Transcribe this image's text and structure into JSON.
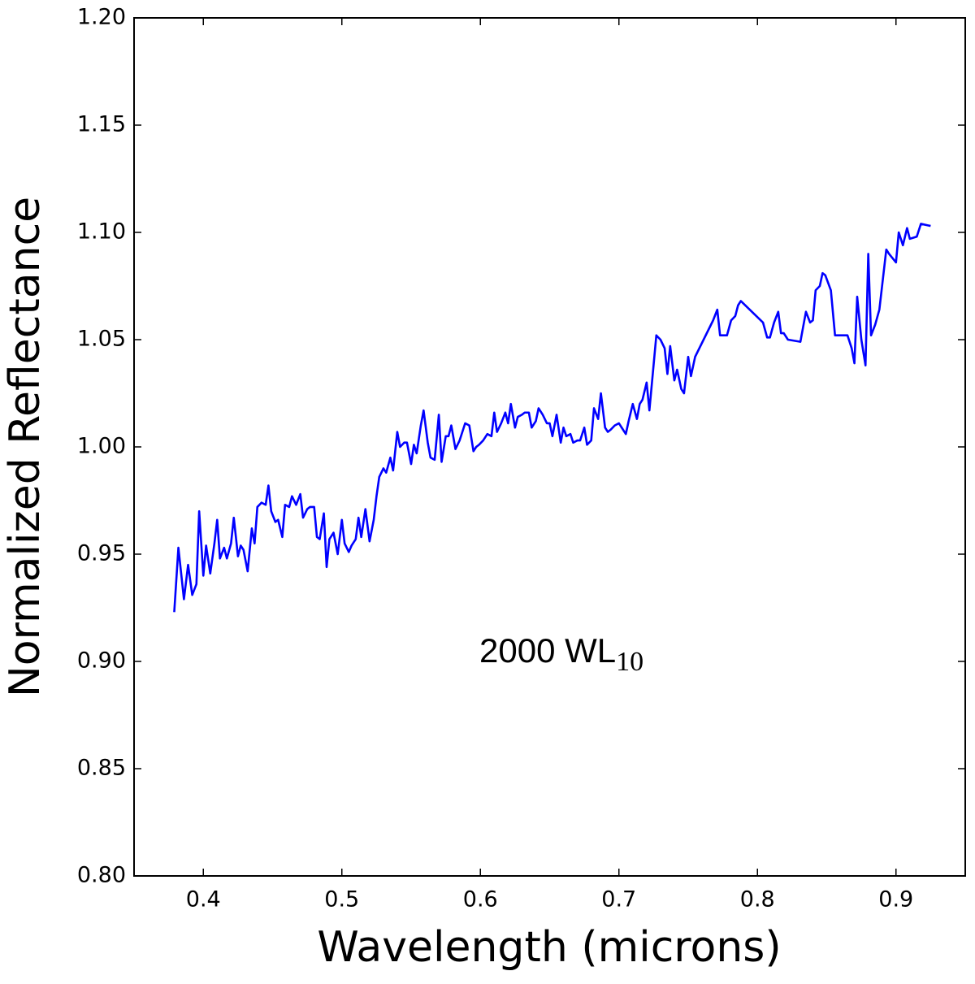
{
  "chart_data": {
    "type": "line",
    "xlabel": "Wavelength (microns)",
    "ylabel": "Normalized Reflectance",
    "annotation": {
      "text": "2000 WL",
      "subscript": "10"
    },
    "xlim": [
      0.35,
      0.95
    ],
    "ylim": [
      0.8,
      1.2
    ],
    "xticks": [
      0.4,
      0.5,
      0.6,
      0.7,
      0.8,
      0.9
    ],
    "yticks": [
      {
        "value": 0.8,
        "label": "0.80"
      },
      0.85,
      {
        "value": 0.9,
        "label": "0.90"
      },
      0.95,
      {
        "value": 1.0,
        "label": "1.00"
      },
      1.05,
      {
        "value": 1.1,
        "label": "1.10"
      },
      1.15,
      {
        "value": 1.2,
        "label": "1.20"
      }
    ],
    "grid": false,
    "x": [
      0.379,
      0.382,
      0.386,
      0.389,
      0.392,
      0.395,
      0.397,
      0.4,
      0.402,
      0.405,
      0.408,
      0.41,
      0.412,
      0.415,
      0.417,
      0.42,
      0.422,
      0.425,
      0.427,
      0.429,
      0.432,
      0.435,
      0.437,
      0.439,
      0.442,
      0.445,
      0.447,
      0.449,
      0.452,
      0.454,
      0.457,
      0.459,
      0.462,
      0.464,
      0.467,
      0.47,
      0.472,
      0.475,
      0.477,
      0.48,
      0.482,
      0.484,
      0.487,
      0.489,
      0.491,
      0.494,
      0.497,
      0.5,
      0.502,
      0.505,
      0.507,
      0.51,
      0.512,
      0.514,
      0.517,
      0.52,
      0.523,
      0.525,
      0.527,
      0.53,
      0.532,
      0.535,
      0.537,
      0.54,
      0.542,
      0.545,
      0.547,
      0.55,
      0.552,
      0.554,
      0.557,
      0.559,
      0.562,
      0.564,
      0.567,
      0.57,
      0.572,
      0.575,
      0.577,
      0.579,
      0.582,
      0.585,
      0.587,
      0.589,
      0.592,
      0.595,
      0.597,
      0.599,
      0.602,
      0.605,
      0.608,
      0.61,
      0.612,
      0.615,
      0.618,
      0.62,
      0.622,
      0.625,
      0.627,
      0.63,
      0.632,
      0.635,
      0.637,
      0.64,
      0.642,
      0.645,
      0.648,
      0.65,
      0.652,
      0.655,
      0.658,
      0.66,
      0.662,
      0.665,
      0.667,
      0.67,
      0.672,
      0.675,
      0.677,
      0.68,
      0.682,
      0.685,
      0.687,
      0.69,
      0.692,
      0.694,
      0.697,
      0.7,
      0.702,
      0.705,
      0.707,
      0.71,
      0.713,
      0.715,
      0.717,
      0.72,
      0.722,
      0.725,
      0.727,
      0.73,
      0.733,
      0.735,
      0.737,
      0.74,
      0.742,
      0.745,
      0.747,
      0.75,
      0.752,
      0.755,
      0.768,
      0.771,
      0.773,
      0.776,
      0.778,
      0.781,
      0.784,
      0.786,
      0.788,
      0.804,
      0.807,
      0.809,
      0.812,
      0.815,
      0.817,
      0.819,
      0.822,
      0.831,
      0.833,
      0.835,
      0.838,
      0.84,
      0.842,
      0.845,
      0.847,
      0.849,
      0.853,
      0.856,
      0.865,
      0.868,
      0.87,
      0.872,
      0.875,
      0.878,
      0.88,
      0.882,
      0.885,
      0.888,
      0.893,
      0.895,
      0.9,
      0.902,
      0.905,
      0.908,
      0.91,
      0.915,
      0.918,
      0.925
    ],
    "series": [
      {
        "color": "#0000ff",
        "values": [
          0.923,
          0.953,
          0.929,
          0.945,
          0.931,
          0.936,
          0.97,
          0.94,
          0.954,
          0.941,
          0.955,
          0.966,
          0.948,
          0.953,
          0.948,
          0.955,
          0.967,
          0.949,
          0.954,
          0.952,
          0.942,
          0.962,
          0.955,
          0.972,
          0.974,
          0.973,
          0.982,
          0.97,
          0.965,
          0.966,
          0.958,
          0.973,
          0.972,
          0.977,
          0.973,
          0.978,
          0.967,
          0.971,
          0.972,
          0.972,
          0.958,
          0.957,
          0.969,
          0.944,
          0.957,
          0.96,
          0.95,
          0.966,
          0.955,
          0.951,
          0.954,
          0.957,
          0.967,
          0.958,
          0.971,
          0.956,
          0.966,
          0.977,
          0.986,
          0.99,
          0.988,
          0.995,
          0.989,
          1.007,
          1.0,
          1.002,
          1.002,
          0.992,
          1.001,
          0.997,
          1.01,
          1.017,
          1.002,
          0.995,
          0.994,
          1.015,
          0.993,
          1.005,
          1.005,
          1.01,
          0.999,
          1.003,
          1.007,
          1.011,
          1.01,
          0.998,
          1.0,
          1.001,
          1.003,
          1.006,
          1.005,
          1.016,
          1.007,
          1.011,
          1.016,
          1.011,
          1.02,
          1.009,
          1.014,
          1.015,
          1.016,
          1.016,
          1.009,
          1.012,
          1.018,
          1.015,
          1.011,
          1.011,
          1.005,
          1.015,
          1.002,
          1.009,
          1.005,
          1.006,
          1.002,
          1.003,
          1.003,
          1.009,
          1.001,
          1.003,
          1.018,
          1.013,
          1.025,
          1.009,
          1.007,
          1.008,
          1.01,
          1.011,
          1.009,
          1.006,
          1.012,
          1.02,
          1.013,
          1.02,
          1.022,
          1.03,
          1.017,
          1.038,
          1.052,
          1.05,
          1.046,
          1.034,
          1.047,
          1.031,
          1.036,
          1.027,
          1.025,
          1.042,
          1.033,
          1.042,
          1.059,
          1.064,
          1.052,
          1.052,
          1.052,
          1.059,
          1.061,
          1.066,
          1.068,
          1.058,
          1.051,
          1.051,
          1.058,
          1.063,
          1.053,
          1.053,
          1.05,
          1.049,
          1.056,
          1.063,
          1.058,
          1.059,
          1.073,
          1.075,
          1.081,
          1.08,
          1.073,
          1.052,
          1.052,
          1.046,
          1.039,
          1.07,
          1.05,
          1.038,
          1.09,
          1.052,
          1.057,
          1.064,
          1.092,
          1.09,
          1.086,
          1.1,
          1.094,
          1.102,
          1.097,
          1.098,
          1.104,
          1.103
        ]
      }
    ]
  }
}
